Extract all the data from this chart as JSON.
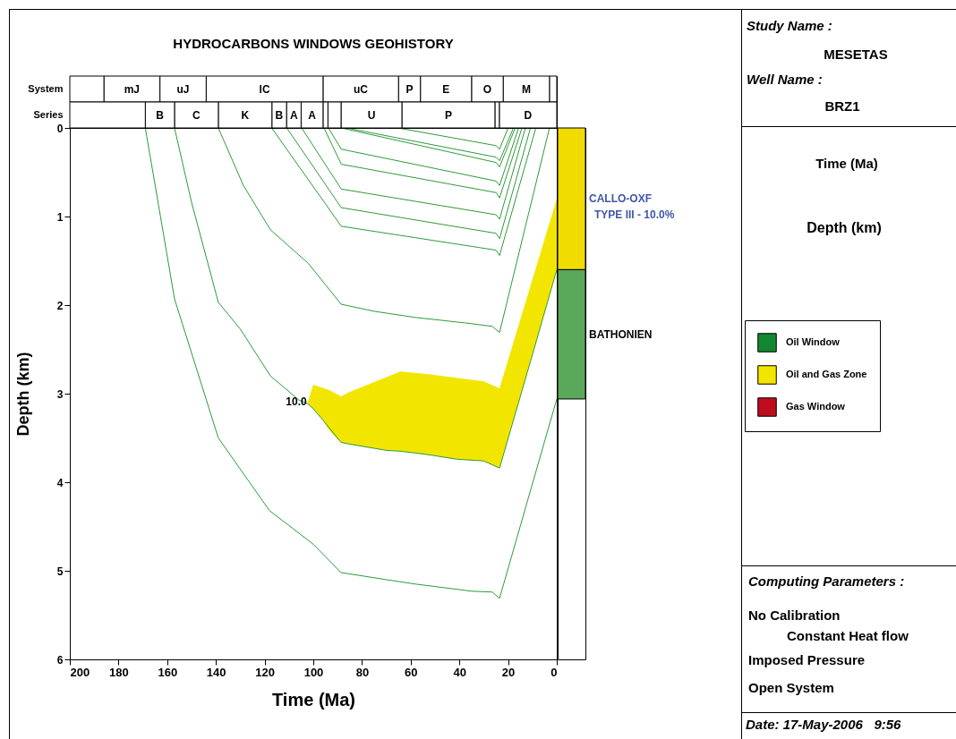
{
  "chart_data": [
    {
      "type": "line",
      "xlabel": "Time (Ma)",
      "ylabel": "Depth (km)",
      "xlim": [
        200,
        0
      ],
      "xticks": [
        200,
        180,
        160,
        140,
        120,
        100,
        80,
        60,
        40,
        20,
        0
      ],
      "ylim": [
        6,
        0
      ],
      "yticks": [
        0,
        1,
        2,
        3,
        4,
        5,
        6
      ],
      "legend": "right",
      "annotations": [
        {
          "text": "10.0",
          "x": 107,
          "y": 3.09
        }
      ],
      "series": [
        {
          "type": "area",
          "name": "Oil Window",
          "color": "#12872f"
        },
        {
          "type": "area",
          "name": "Oil and Gas Zone",
          "color": "#f2e600",
          "x": [
            102.5,
            100,
            93.4,
            88.6,
            85,
            64.3,
            52.6,
            30,
            23.5,
            0,
            0,
            23.5,
            30,
            41,
            52.6,
            58,
            64.3,
            70,
            85,
            88.6,
            93.4,
            96,
            100
          ],
          "values": [
            3.11,
            2.9,
            2.96,
            3.03,
            2.98,
            2.75,
            2.78,
            2.86,
            2.94,
            0.8,
            1.6,
            3.84,
            3.76,
            3.74,
            3.69,
            3.67,
            3.65,
            3.64,
            3.57,
            3.55,
            3.42,
            3.3,
            3.17
          ]
        },
        {
          "type": "area",
          "name": "Gas Window",
          "color": "#c00d1e"
        },
        {
          "type": "line",
          "color": "#2e9a3a",
          "x": [
            169,
            164,
            157,
            139,
            118,
            100,
            88.6,
            70,
            58,
            35,
            26.5,
            23.5,
            0
          ],
          "values": [
            0,
            0.8,
            1.93,
            3.5,
            4.32,
            4.7,
            5.02,
            5.1,
            5.15,
            5.23,
            5.24,
            5.31,
            3.06
          ]
        },
        {
          "type": "line",
          "color": "#2e9a3a",
          "x": [
            157,
            150,
            139,
            130,
            117.6,
            106,
            102.5,
            100,
            96,
            88.6,
            85,
            70,
            64.3,
            58,
            52.6,
            41,
            30,
            23.5,
            10,
            0
          ],
          "values": [
            0,
            0.84,
            1.97,
            2.27,
            2.8,
            3.07,
            3.11,
            3.17,
            3.3,
            3.55,
            3.57,
            3.64,
            3.65,
            3.67,
            3.69,
            3.74,
            3.76,
            3.84,
            2.56,
            1.6
          ]
        },
        {
          "type": "line",
          "color": "#2e9a3a",
          "x": [
            139,
            128.7,
            117.6,
            102,
            95,
            88.6,
            75,
            58,
            38,
            26.5,
            23.5,
            3
          ],
          "values": [
            0,
            0.65,
            1.15,
            1.53,
            1.77,
            1.99,
            2.07,
            2.14,
            2.2,
            2.24,
            2.31,
            0
          ]
        },
        {
          "type": "line",
          "color": "#2e9a3a",
          "x": [
            117.1,
            88.5,
            24.9,
            23.5,
            8.6
          ],
          "values": [
            0,
            1.11,
            1.38,
            1.44,
            0
          ]
        },
        {
          "type": "line",
          "color": "#2e9a3a",
          "x": [
            110.9,
            88.5,
            24.9,
            23.5,
            10.8
          ],
          "values": [
            0,
            0.9,
            1.19,
            1.25,
            0
          ]
        },
        {
          "type": "line",
          "color": "#2e9a3a",
          "x": [
            104.8,
            88.5,
            24.9,
            23.5,
            12.9
          ],
          "values": [
            0,
            0.69,
            0.98,
            1.03,
            0
          ]
        },
        {
          "type": "line",
          "color": "#2e9a3a",
          "x": [
            95.6,
            88.5,
            24.9,
            23.5,
            14.3
          ],
          "values": [
            0,
            0.41,
            0.73,
            0.79,
            0
          ]
        },
        {
          "type": "line",
          "color": "#2e9a3a",
          "x": [
            93.8,
            88.5,
            24.9,
            23.5,
            15.7
          ],
          "values": [
            0,
            0.24,
            0.6,
            0.65,
            0
          ]
        },
        {
          "type": "line",
          "color": "#2e9a3a",
          "x": [
            88.5,
            24.9,
            23.5,
            17.1
          ],
          "values": [
            0,
            0.39,
            0.44,
            0
          ]
        },
        {
          "type": "line",
          "color": "#2e9a3a",
          "x": [
            86.4,
            24.9,
            23.5,
            17.8
          ],
          "values": [
            0,
            0.33,
            0.37,
            0
          ]
        },
        {
          "type": "line",
          "color": "#2e9a3a",
          "x": [
            65.2,
            24.9,
            23.5,
            20
          ],
          "values": [
            0,
            0.2,
            0.24,
            0
          ]
        }
      ]
    },
    {
      "type": "bar",
      "title": "HYDROCARBONS WINDOWS GEOHISTORY",
      "orientation": "horizontal",
      "stacked": true,
      "categories": [
        "System",
        "Series"
      ],
      "xlim": [
        200,
        0
      ],
      "tick_labels": "y",
      "series": [
        {
          "color": "#ffffff",
          "values": [
            3,
            null
          ]
        },
        {
          "name": "M",
          "color": "#ffffff",
          "values": [
            19,
            null
          ]
        },
        {
          "name": "O",
          "color": "#ffffff",
          "values": [
            13,
            null
          ]
        },
        {
          "name": "E",
          "color": "#ffffff",
          "values": [
            21,
            null
          ]
        },
        {
          "name": "P",
          "color": "#ffffff",
          "values": [
            9,
            null
          ]
        },
        {
          "name": "uC",
          "color": "#ffffff",
          "values": [
            31,
            null
          ]
        },
        {
          "name": "lC",
          "color": "#ffffff",
          "values": [
            48,
            null
          ]
        },
        {
          "name": "uJ",
          "color": "#ffffff",
          "values": [
            19,
            null
          ]
        },
        {
          "name": "mJ",
          "color": "#ffffff",
          "values": [
            23,
            null
          ]
        },
        {
          "color": "#ffffff",
          "values": [
            14,
            null
          ]
        },
        {
          "name": "D",
          "color": "#ffffff",
          "values": [
            null,
            23.6
          ]
        },
        {
          "color": "#ffffff",
          "values": [
            null,
            1.8
          ]
        },
        {
          "name": "P",
          "color": "#ffffff",
          "values": [
            null,
            38.2
          ]
        },
        {
          "name": "U",
          "color": "#ffffff",
          "values": [
            null,
            25
          ]
        },
        {
          "color": "#ffffff",
          "values": [
            null,
            5.4
          ]
        },
        {
          "color": "#ffffff",
          "values": [
            null,
            2
          ]
        },
        {
          "name": "A",
          "color": "#ffffff",
          "values": [
            null,
            9
          ]
        },
        {
          "name": "A",
          "color": "#ffffff",
          "values": [
            null,
            6
          ]
        },
        {
          "name": "B",
          "color": "#ffffff",
          "values": [
            null,
            6
          ]
        },
        {
          "name": "K",
          "color": "#ffffff",
          "values": [
            null,
            22
          ]
        },
        {
          "name": "C",
          "color": "#ffffff",
          "values": [
            null,
            18
          ]
        },
        {
          "name": "B",
          "color": "#ffffff",
          "values": [
            null,
            12
          ]
        },
        {
          "color": "#ffffff",
          "values": [
            null,
            31
          ]
        }
      ]
    },
    {
      "type": "bar",
      "stacked": true,
      "categories": [
        null
      ],
      "ylim": [
        6,
        0
      ],
      "tick_labels": false,
      "annotations": [
        "TYPE III - 10.0%"
      ],
      "series": [
        {
          "name": "CALLO-OXF",
          "color": "#f0dc00",
          "values": [
            1.6
          ]
        },
        {
          "name": "BATHONIEN",
          "color": "#5aa85a",
          "values": [
            1.46
          ]
        }
      ]
    },
    {
      "type": "other",
      "annotations": [
        "Study Name :",
        "MESETAS",
        "Well Name :",
        "BRZ1",
        "Time (Ma)",
        "Depth (km)",
        "Computing Parameters :",
        "No Calibration",
        "Constant Heat flow",
        "Imposed Pressure",
        "Open System",
        "Date: 17-May-2006   9:56"
      ]
    }
  ]
}
